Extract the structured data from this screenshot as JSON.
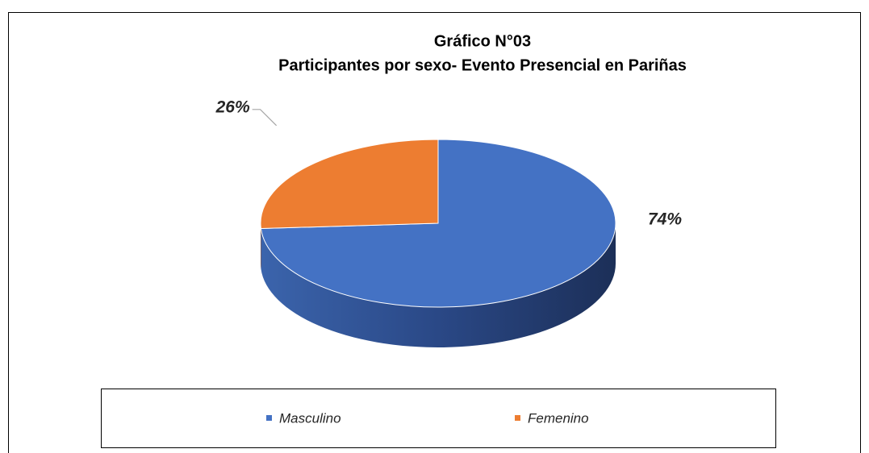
{
  "chart_data": {
    "type": "pie3d",
    "title": "Gráfico N°03",
    "subtitle": "Participantes por sexo- Evento Presencial en Pariñas",
    "categories": [
      "Masculino",
      "Femenino"
    ],
    "values": [
      74,
      26
    ],
    "value_labels": [
      "74%",
      "26%"
    ],
    "colors": [
      "#4472c4",
      "#ed7d31"
    ],
    "legend": "bottom"
  }
}
